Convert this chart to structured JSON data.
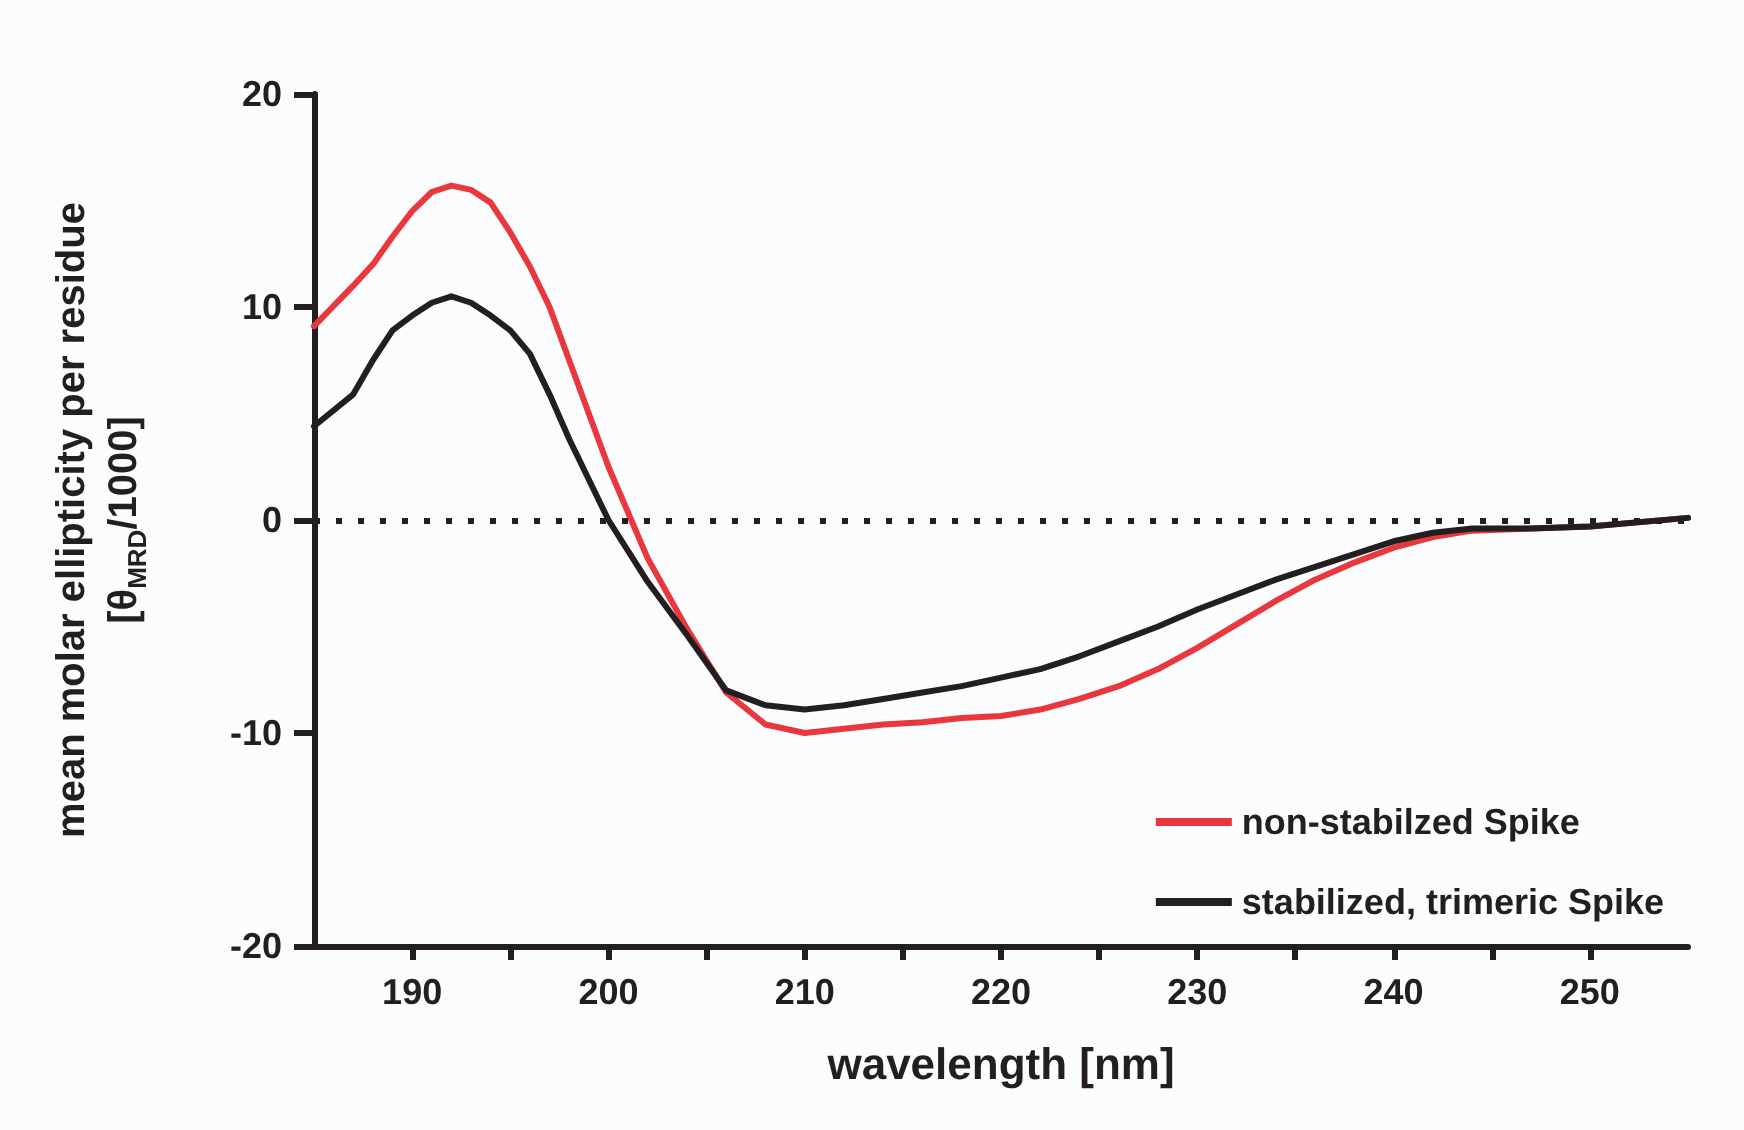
{
  "chart_data": {
    "type": "line",
    "xlabel": "wavelength [nm]",
    "ylabel": "mean molar ellipticity per residue\n[θ$_{MRD}$/1000]",
    "xlim": [
      185,
      255
    ],
    "xticks": [
      190,
      {
        "value": 195,
        "label": null
      },
      200,
      {
        "value": 205,
        "label": null
      },
      210,
      {
        "value": 215,
        "label": null
      },
      220,
      {
        "value": 225,
        "label": null
      },
      230,
      {
        "value": 235,
        "label": null
      },
      240,
      {
        "value": 245,
        "label": null
      },
      250
    ],
    "ylim": [
      -20,
      20
    ],
    "yticks": [
      -20,
      -10,
      0,
      10,
      20
    ],
    "grid": false,
    "legend": "bottom right",
    "marker": "none",
    "line_style": "solid",
    "x": [
      185,
      187,
      188,
      189,
      190,
      191,
      192,
      193,
      194,
      195,
      196,
      197,
      198,
      199,
      200,
      202,
      204,
      206,
      208,
      210,
      212,
      214,
      216,
      218,
      220,
      222,
      224,
      226,
      228,
      230,
      232,
      234,
      236,
      238,
      240,
      242,
      244,
      247,
      250,
      255
    ],
    "series": [
      {
        "name": "non-stabilzed Spike",
        "color": "#e8373d",
        "values": [
          9.1,
          11.0,
          12.0,
          13.3,
          14.5,
          15.4,
          15.7,
          15.5,
          14.9,
          13.5,
          11.9,
          10.0,
          7.5,
          5.0,
          2.5,
          -1.8,
          -5.1,
          -8.1,
          -9.6,
          -10.0,
          -9.8,
          -9.6,
          -9.5,
          -9.3,
          -9.2,
          -8.9,
          -8.4,
          -7.8,
          -7.0,
          -6.0,
          -4.9,
          -3.8,
          -2.8,
          -2.0,
          -1.3,
          -0.8,
          -0.5,
          -0.4,
          -0.3,
          0.1
        ]
      },
      {
        "name": "stabilized, trimeric Spike",
        "color": "#231f20",
        "values": [
          4.4,
          5.9,
          7.5,
          8.9,
          9.6,
          10.2,
          10.5,
          10.2,
          9.6,
          8.9,
          7.8,
          5.9,
          3.8,
          1.9,
          0.0,
          -2.9,
          -5.4,
          -8.0,
          -8.7,
          -8.9,
          -8.7,
          -8.4,
          -8.1,
          -7.8,
          -7.4,
          -7.0,
          -6.4,
          -5.7,
          -5.0,
          -4.2,
          -3.5,
          -2.8,
          -2.2,
          -1.6,
          -1.0,
          -0.6,
          -0.4,
          -0.4,
          -0.3,
          0.1
        ]
      }
    ],
    "ref_lines": [
      {
        "axis": "y",
        "value": 0,
        "color": "#231f20",
        "line_style": "dotted"
      }
    ]
  }
}
